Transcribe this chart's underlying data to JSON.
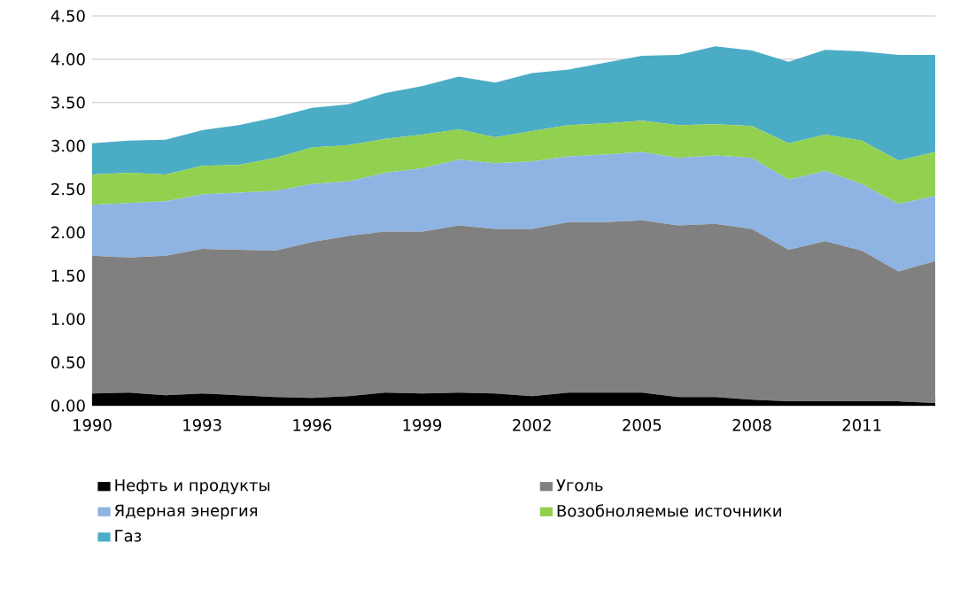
{
  "chart_data": {
    "type": "area",
    "stacked": true,
    "x": [
      1990,
      1991,
      1992,
      1993,
      1994,
      1995,
      1996,
      1997,
      1998,
      1999,
      2000,
      2001,
      2002,
      2003,
      2004,
      2005,
      2006,
      2007,
      2008,
      2009,
      2010,
      2011,
      2012,
      2013
    ],
    "series": [
      {
        "name": "Нефть и продукты",
        "color": "#000000",
        "values": [
          0.14,
          0.15,
          0.12,
          0.14,
          0.12,
          0.1,
          0.09,
          0.11,
          0.15,
          0.14,
          0.15,
          0.14,
          0.11,
          0.15,
          0.15,
          0.15,
          0.1,
          0.1,
          0.07,
          0.05,
          0.05,
          0.05,
          0.05,
          0.03
        ]
      },
      {
        "name": "Уголь",
        "color": "#808080",
        "values": [
          1.59,
          1.56,
          1.61,
          1.67,
          1.68,
          1.69,
          1.8,
          1.85,
          1.86,
          1.87,
          1.93,
          1.9,
          1.93,
          1.97,
          1.97,
          1.99,
          1.98,
          2.0,
          1.97,
          1.75,
          1.85,
          1.74,
          1.5,
          1.64
        ]
      },
      {
        "name": "Ядерная энергия",
        "color": "#8eb4e3",
        "values": [
          0.59,
          0.63,
          0.63,
          0.63,
          0.66,
          0.69,
          0.67,
          0.63,
          0.68,
          0.73,
          0.76,
          0.76,
          0.78,
          0.76,
          0.78,
          0.79,
          0.78,
          0.79,
          0.82,
          0.81,
          0.81,
          0.77,
          0.78,
          0.75
        ]
      },
      {
        "name": "Возобноляемые  источники",
        "color": "#92d050",
        "values": [
          0.35,
          0.35,
          0.31,
          0.33,
          0.32,
          0.38,
          0.42,
          0.42,
          0.39,
          0.39,
          0.35,
          0.3,
          0.35,
          0.36,
          0.36,
          0.36,
          0.38,
          0.36,
          0.37,
          0.42,
          0.42,
          0.5,
          0.5,
          0.51
        ]
      },
      {
        "name": "Газ",
        "color": "#4bacc6",
        "values": [
          0.36,
          0.37,
          0.4,
          0.41,
          0.46,
          0.47,
          0.46,
          0.47,
          0.53,
          0.56,
          0.61,
          0.63,
          0.67,
          0.64,
          0.7,
          0.75,
          0.81,
          0.9,
          0.87,
          0.94,
          0.98,
          1.03,
          1.22,
          1.12
        ]
      }
    ],
    "xlim": [
      1990,
      2013
    ],
    "xticks": [
      1990,
      1993,
      1996,
      1999,
      2002,
      2005,
      2008,
      2011
    ],
    "ylim": [
      0,
      4.5
    ],
    "yticks": [
      {
        "value": 0,
        "label": "0.00"
      },
      {
        "value": 0.5,
        "label": "0.50"
      },
      {
        "value": 1,
        "label": "1.00"
      },
      {
        "value": 1.5,
        "label": "1.50"
      },
      {
        "value": 2,
        "label": "2.00"
      },
      {
        "value": 2.5,
        "label": "2.50"
      },
      {
        "value": 3,
        "label": "3.00"
      },
      {
        "value": 3.5,
        "label": "3.50"
      },
      {
        "value": 4,
        "label": "4.00"
      },
      {
        "value": 4.5,
        "label": "4.50"
      }
    ],
    "grid": "y",
    "legend": "bottom"
  }
}
